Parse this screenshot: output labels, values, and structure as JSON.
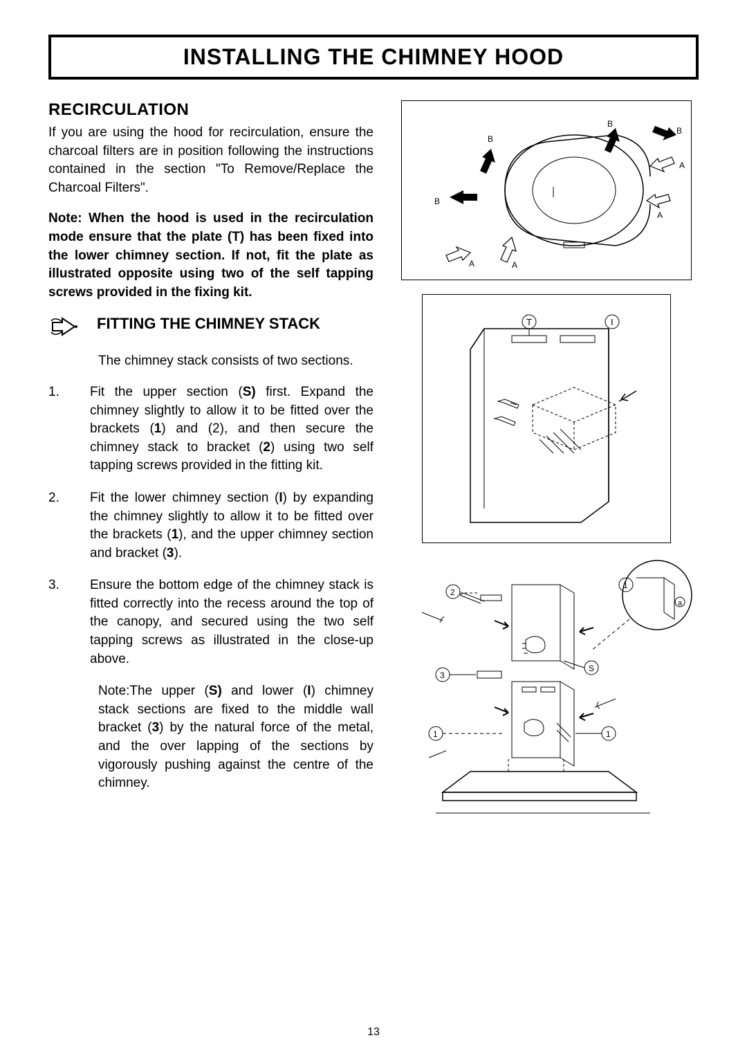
{
  "title": "INSTALLING THE CHIMNEY HOOD",
  "recirculation": {
    "heading": "RECIRCULATION",
    "p1": "If you are using the hood for recirculation, ensure the charcoal filters are in position following the instructions contained in the section \"To Remove/Replace the Charcoal Filters\".",
    "note": "Note: When the hood is used in the recirculation mode ensure that the plate (T) has been fixed into the lower chimney section. If not, fit the plate as illustrated opposite using two of the self tapping screws provided in the fixing kit."
  },
  "fitting": {
    "heading": "FITTING THE CHIMNEY STACK",
    "intro": "The chimney stack consists of two sections.",
    "steps": [
      {
        "n": "1.",
        "text": "Fit the upper section (<b>S)</b> first. Expand the chimney slightly to allow it to be fitted over the brackets (<b>1</b>) and (2), and then secure the chimney stack to bracket (<b>2</b>) using two self tapping screws provided in the fitting kit."
      },
      {
        "n": "2.",
        "text": "Fit the lower chimney section (<b>I</b>) by expanding the chimney slightly to allow it to be fitted over the brackets (<b>1</b>), and the upper chimney section and bracket (<b>3</b>)."
      },
      {
        "n": "3.",
        "text": "Ensure the bottom edge of the chimney stack is fitted correctly into the recess around the top of the canopy, and secured using the two self tapping screws as illustrated in the close-up above."
      }
    ],
    "note": "Note:The upper (<b>S)</b> and lower (<b>I</b>) chimney stack sections are fixed to the middle wall bracket (<b>3</b>) by the natural force of the metal, and the over lapping of the sections by vigorously pushing against the centre of the chimney."
  },
  "pagenum": "13",
  "colors": {
    "text": "#000000",
    "bg": "#ffffff",
    "border": "#000000"
  }
}
